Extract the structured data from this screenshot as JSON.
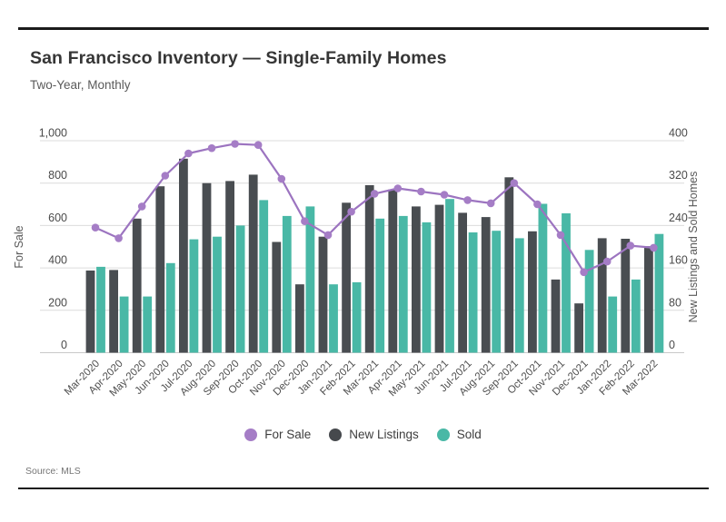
{
  "page": {
    "title": "San Francisco Inventory — Single-Family Homes",
    "subtitle": "Two-Year, Monthly",
    "source_label": "Source: MLS"
  },
  "legend": {
    "items": [
      {
        "label": "For Sale",
        "color": "#a57dc6"
      },
      {
        "label": "New Listings",
        "color": "#46494d"
      },
      {
        "label": "Sold",
        "color": "#49b8a6"
      }
    ]
  },
  "chart_data": {
    "type": "combo-line-bar",
    "categories": [
      "Mar-2020",
      "Apr-2020",
      "May-2020",
      "Jun-2020",
      "Jul-2020",
      "Aug-2020",
      "Sep-2020",
      "Oct-2020",
      "Nov-2020",
      "Dec-2020",
      "Jan-2021",
      "Feb-2021",
      "Mar-2021",
      "Apr-2021",
      "May-2021",
      "Jun-2021",
      "Jul-2021",
      "Aug-2021",
      "Sep-2021",
      "Oct-2021",
      "Nov-2021",
      "Dec-2021",
      "Jan-2022",
      "Feb-2022",
      "Mar-2022"
    ],
    "series": [
      {
        "name": "For Sale",
        "type": "line",
        "axis": "left",
        "color": "#a57dc6",
        "line_color": "#9c74c0",
        "values": [
          590,
          540,
          690,
          835,
          940,
          965,
          985,
          980,
          820,
          620,
          555,
          665,
          750,
          775,
          760,
          745,
          720,
          705,
          800,
          700,
          555,
          380,
          430,
          505,
          495
        ]
      },
      {
        "name": "New Listings",
        "type": "bar",
        "axis": "right",
        "color": "#494d51",
        "values": [
          155,
          156,
          253,
          314,
          366,
          320,
          324,
          336,
          209,
          129,
          219,
          283,
          316,
          308,
          276,
          279,
          264,
          256,
          331,
          229,
          138,
          93,
          216,
          215,
          201
        ]
      },
      {
        "name": "Sold",
        "type": "bar",
        "axis": "right",
        "color": "#49b8a6",
        "values": [
          162,
          106,
          106,
          169,
          214,
          219,
          240,
          288,
          258,
          276,
          129,
          133,
          253,
          258,
          246,
          290,
          227,
          230,
          216,
          281,
          263,
          194,
          106,
          138,
          224
        ]
      }
    ],
    "left_axis": {
      "title": "For Sale",
      "min": 0,
      "max": 1000,
      "ticks": [
        0,
        200,
        400,
        600,
        800,
        1000
      ]
    },
    "right_axis": {
      "title": "New Listings and Sold Homes",
      "min": 0,
      "max": 400,
      "ticks": [
        0,
        80,
        160,
        240,
        320,
        400
      ]
    },
    "grid": true,
    "x_label_rotation": -45,
    "legend_position": "bottom-center"
  }
}
